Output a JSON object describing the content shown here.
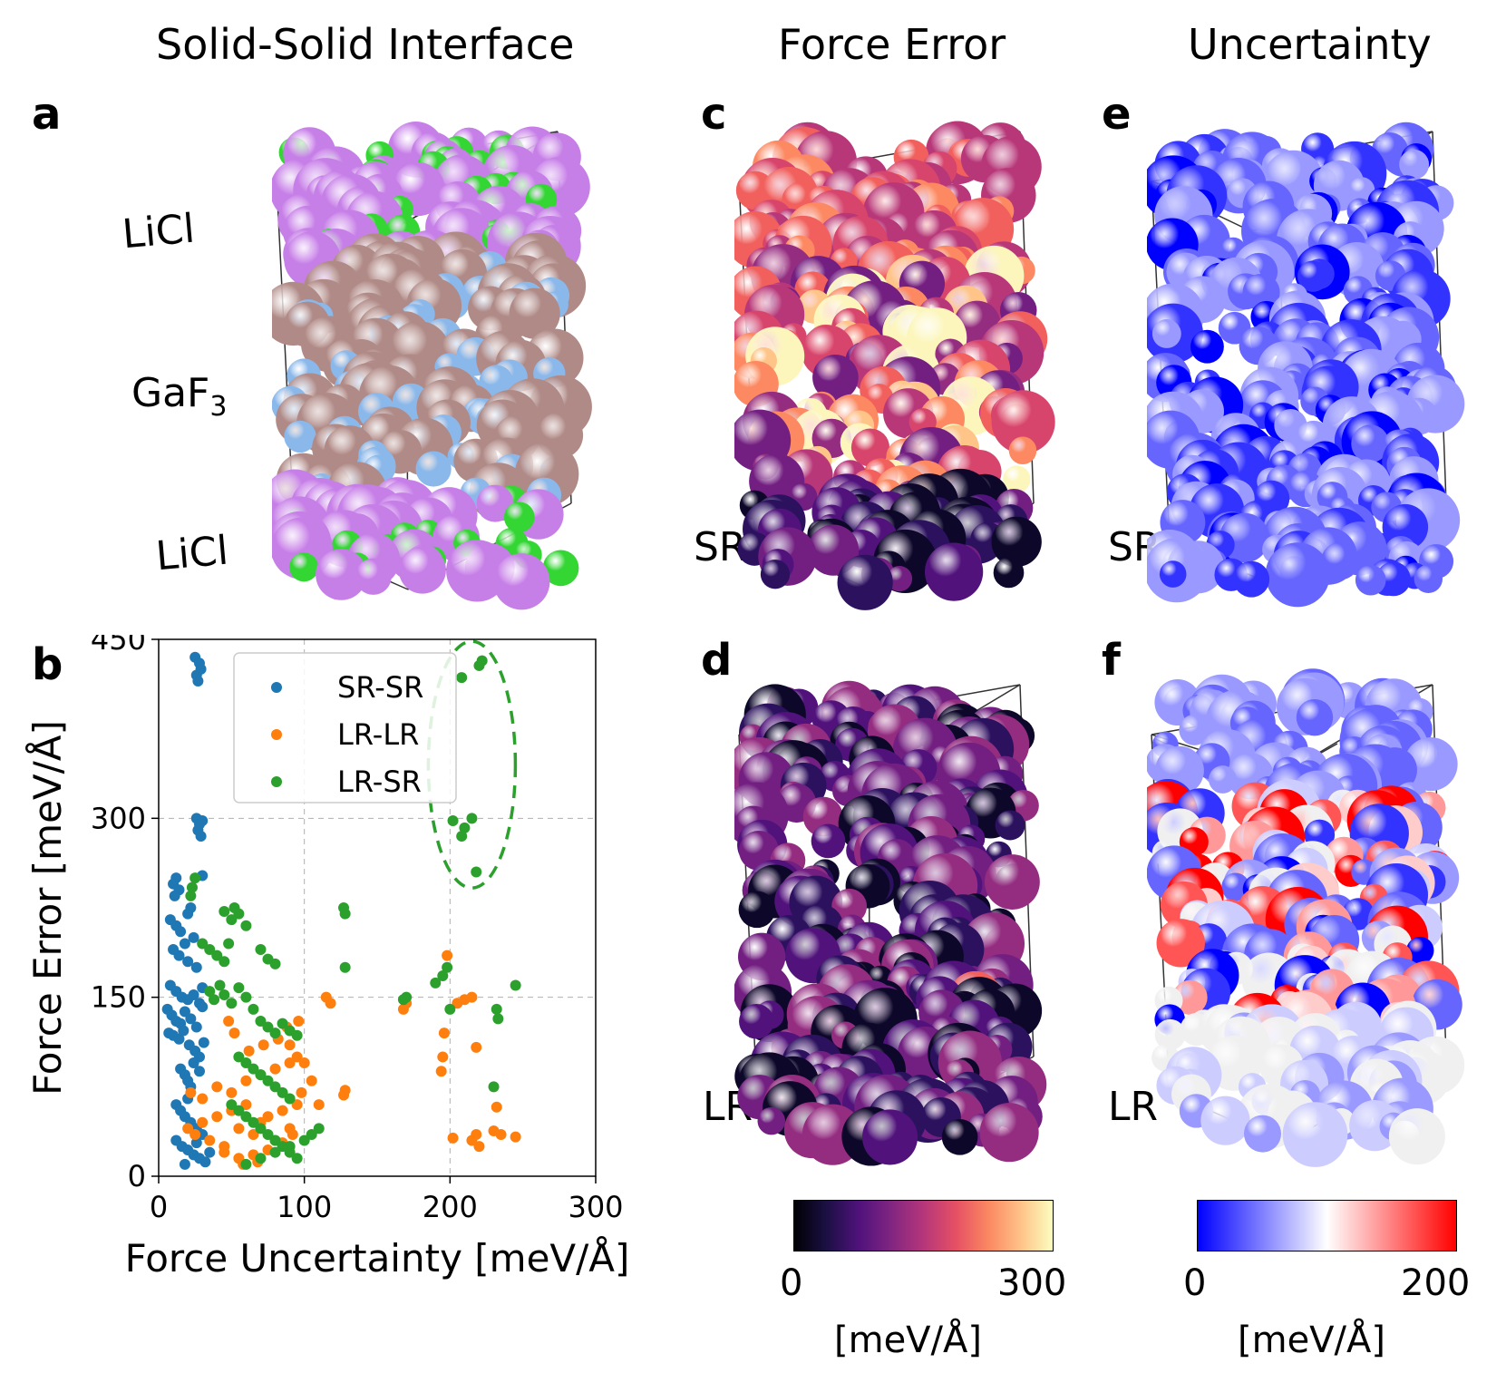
{
  "column_titles": [
    "Solid-Solid Interface",
    "Force Error",
    "Uncertainty"
  ],
  "panel_labels": {
    "a": "a",
    "b": "b",
    "c": "c",
    "d": "d",
    "e": "e",
    "f": "f"
  },
  "structure_labels": {
    "top": "LiCl",
    "middle": "GaF",
    "middle_sub": "3",
    "bottom": "LiCl"
  },
  "row_labels": {
    "c": "SR",
    "d": "LR",
    "e": "SR",
    "f": "LR"
  },
  "colors": {
    "li": "#33d633",
    "cl": "#c77fe8",
    "ga": "#b08a86",
    "f": "#8bb8ea",
    "sr_sr": "#1f77b4",
    "lr_lr": "#ff7f0e",
    "lr_sr": "#2ca02c",
    "ellipse": "#2ca02c"
  },
  "colorbars": {
    "force_error": {
      "min_label": "0",
      "max_label": "300",
      "unit": "[meV/Å]",
      "colormap": "magma",
      "min": 0,
      "max": 300
    },
    "uncertainty": {
      "min_label": "0",
      "max_label": "200",
      "unit": "[meV/Å]",
      "colormap": "bwr",
      "min": 0,
      "max": 200
    }
  },
  "chart_data": {
    "type": "scatter",
    "xlabel": "Force Uncertainty [meV/Å]",
    "ylabel": "Force Error [meV/Å]",
    "xlim": [
      0,
      300
    ],
    "ylim": [
      0,
      450
    ],
    "xticks": [
      0,
      100,
      200,
      300
    ],
    "yticks": [
      0,
      150,
      300,
      450
    ],
    "grid": true,
    "legend_position": "top-center",
    "annotation": "dashed ellipse around LR-SR outliers near x=215",
    "series": [
      {
        "name": "SR-SR",
        "color": "#1f77b4",
        "points": [
          [
            25,
            435
          ],
          [
            28,
            430
          ],
          [
            26,
            420
          ],
          [
            29,
            425
          ],
          [
            27,
            415
          ],
          [
            26,
            300
          ],
          [
            28,
            295
          ],
          [
            30,
            298
          ],
          [
            27,
            290
          ],
          [
            29,
            285
          ],
          [
            12,
            250
          ],
          [
            10,
            245
          ],
          [
            14,
            240
          ],
          [
            11,
            235
          ],
          [
            30,
            252
          ],
          [
            8,
            215
          ],
          [
            12,
            210
          ],
          [
            15,
            205
          ],
          [
            20,
            220
          ],
          [
            22,
            225
          ],
          [
            10,
            190
          ],
          [
            14,
            185
          ],
          [
            18,
            195
          ],
          [
            20,
            180
          ],
          [
            24,
            200
          ],
          [
            26,
            175
          ],
          [
            8,
            160
          ],
          [
            12,
            155
          ],
          [
            16,
            150
          ],
          [
            20,
            148
          ],
          [
            24,
            152
          ],
          [
            28,
            145
          ],
          [
            30,
            158
          ],
          [
            6,
            140
          ],
          [
            9,
            135
          ],
          [
            12,
            130
          ],
          [
            15,
            128
          ],
          [
            18,
            138
          ],
          [
            22,
            132
          ],
          [
            26,
            125
          ],
          [
            30,
            142
          ],
          [
            7,
            120
          ],
          [
            10,
            118
          ],
          [
            14,
            115
          ],
          [
            17,
            122
          ],
          [
            21,
            110
          ],
          [
            25,
            105
          ],
          [
            28,
            100
          ],
          [
            31,
            112
          ],
          [
            15,
            90
          ],
          [
            18,
            85
          ],
          [
            20,
            80
          ],
          [
            24,
            95
          ],
          [
            28,
            88
          ],
          [
            22,
            75
          ],
          [
            12,
            60
          ],
          [
            15,
            55
          ],
          [
            18,
            50
          ],
          [
            22,
            45
          ],
          [
            26,
            40
          ],
          [
            30,
            35
          ],
          [
            20,
            65
          ],
          [
            12,
            30
          ],
          [
            16,
            25
          ],
          [
            20,
            22
          ],
          [
            24,
            18
          ],
          [
            28,
            15
          ],
          [
            32,
            12
          ],
          [
            18,
            10
          ],
          [
            26,
            28
          ],
          [
            35,
            20
          ]
        ]
      },
      {
        "name": "LR-LR",
        "color": "#ff7f0e",
        "points": [
          [
            20,
            40
          ],
          [
            25,
            35
          ],
          [
            30,
            45
          ],
          [
            35,
            30
          ],
          [
            40,
            50
          ],
          [
            45,
            25
          ],
          [
            50,
            55
          ],
          [
            55,
            40
          ],
          [
            60,
            60
          ],
          [
            65,
            35
          ],
          [
            70,
            45
          ],
          [
            75,
            50
          ],
          [
            80,
            30
          ],
          [
            85,
            55
          ],
          [
            90,
            40
          ],
          [
            95,
            60
          ],
          [
            22,
            70
          ],
          [
            30,
            65
          ],
          [
            40,
            75
          ],
          [
            50,
            70
          ],
          [
            60,
            80
          ],
          [
            70,
            85
          ],
          [
            80,
            90
          ],
          [
            90,
            95
          ],
          [
            95,
            100
          ],
          [
            45,
            20
          ],
          [
            55,
            15
          ],
          [
            65,
            18
          ],
          [
            75,
            22
          ],
          [
            85,
            28
          ],
          [
            92,
            35
          ],
          [
            58,
            10
          ],
          [
            68,
            12
          ],
          [
            48,
            130
          ],
          [
            52,
            120
          ],
          [
            62,
            105
          ],
          [
            72,
            110
          ],
          [
            82,
            115
          ],
          [
            88,
            125
          ],
          [
            96,
            130
          ],
          [
            90,
            110
          ],
          [
            100,
            95
          ],
          [
            105,
            80
          ],
          [
            110,
            60
          ],
          [
            98,
            70
          ],
          [
            115,
            150
          ],
          [
            118,
            145
          ],
          [
            127,
            68
          ],
          [
            128,
            72
          ],
          [
            168,
            140
          ],
          [
            170,
            145
          ],
          [
            198,
            185
          ],
          [
            196,
            120
          ],
          [
            195,
            100
          ],
          [
            194,
            88
          ],
          [
            205,
            145
          ],
          [
            210,
            148
          ],
          [
            215,
            150
          ],
          [
            218,
            108
          ],
          [
            202,
            32
          ],
          [
            215,
            30
          ],
          [
            220,
            25
          ],
          [
            218,
            35
          ],
          [
            230,
            38
          ],
          [
            232,
            58
          ],
          [
            235,
            35
          ],
          [
            245,
            33
          ]
        ]
      },
      {
        "name": "LR-SR",
        "color": "#2ca02c",
        "points": [
          [
            208,
            418
          ],
          [
            220,
            428
          ],
          [
            222,
            432
          ],
          [
            202,
            298
          ],
          [
            210,
            292
          ],
          [
            215,
            300
          ],
          [
            208,
            285
          ],
          [
            218,
            255
          ],
          [
            25,
            250
          ],
          [
            23,
            242
          ],
          [
            22,
            235
          ],
          [
            45,
            222
          ],
          [
            50,
            215
          ],
          [
            55,
            220
          ],
          [
            60,
            210
          ],
          [
            52,
            225
          ],
          [
            127,
            225
          ],
          [
            128,
            220
          ],
          [
            128,
            175
          ],
          [
            30,
            195
          ],
          [
            35,
            190
          ],
          [
            40,
            185
          ],
          [
            45,
            180
          ],
          [
            48,
            195
          ],
          [
            70,
            190
          ],
          [
            75,
            182
          ],
          [
            80,
            178
          ],
          [
            35,
            155
          ],
          [
            38,
            148
          ],
          [
            42,
            160
          ],
          [
            45,
            152
          ],
          [
            50,
            145
          ],
          [
            55,
            158
          ],
          [
            60,
            150
          ],
          [
            65,
            140
          ],
          [
            70,
            130
          ],
          [
            75,
            125
          ],
          [
            80,
            120
          ],
          [
            85,
            128
          ],
          [
            90,
            122
          ],
          [
            95,
            118
          ],
          [
            55,
            100
          ],
          [
            60,
            95
          ],
          [
            65,
            90
          ],
          [
            70,
            85
          ],
          [
            75,
            80
          ],
          [
            80,
            75
          ],
          [
            85,
            70
          ],
          [
            90,
            65
          ],
          [
            50,
            60
          ],
          [
            55,
            55
          ],
          [
            60,
            50
          ],
          [
            65,
            45
          ],
          [
            70,
            40
          ],
          [
            75,
            35
          ],
          [
            80,
            30
          ],
          [
            85,
            25
          ],
          [
            90,
            20
          ],
          [
            95,
            15
          ],
          [
            60,
            10
          ],
          [
            70,
            15
          ],
          [
            80,
            20
          ],
          [
            90,
            25
          ],
          [
            100,
            30
          ],
          [
            105,
            35
          ],
          [
            110,
            40
          ],
          [
            168,
            148
          ],
          [
            170,
            150
          ],
          [
            190,
            162
          ],
          [
            198,
            175
          ],
          [
            195,
            168
          ],
          [
            200,
            140
          ],
          [
            232,
            140
          ],
          [
            233,
            132
          ],
          [
            245,
            160
          ],
          [
            230,
            75
          ]
        ]
      }
    ]
  }
}
